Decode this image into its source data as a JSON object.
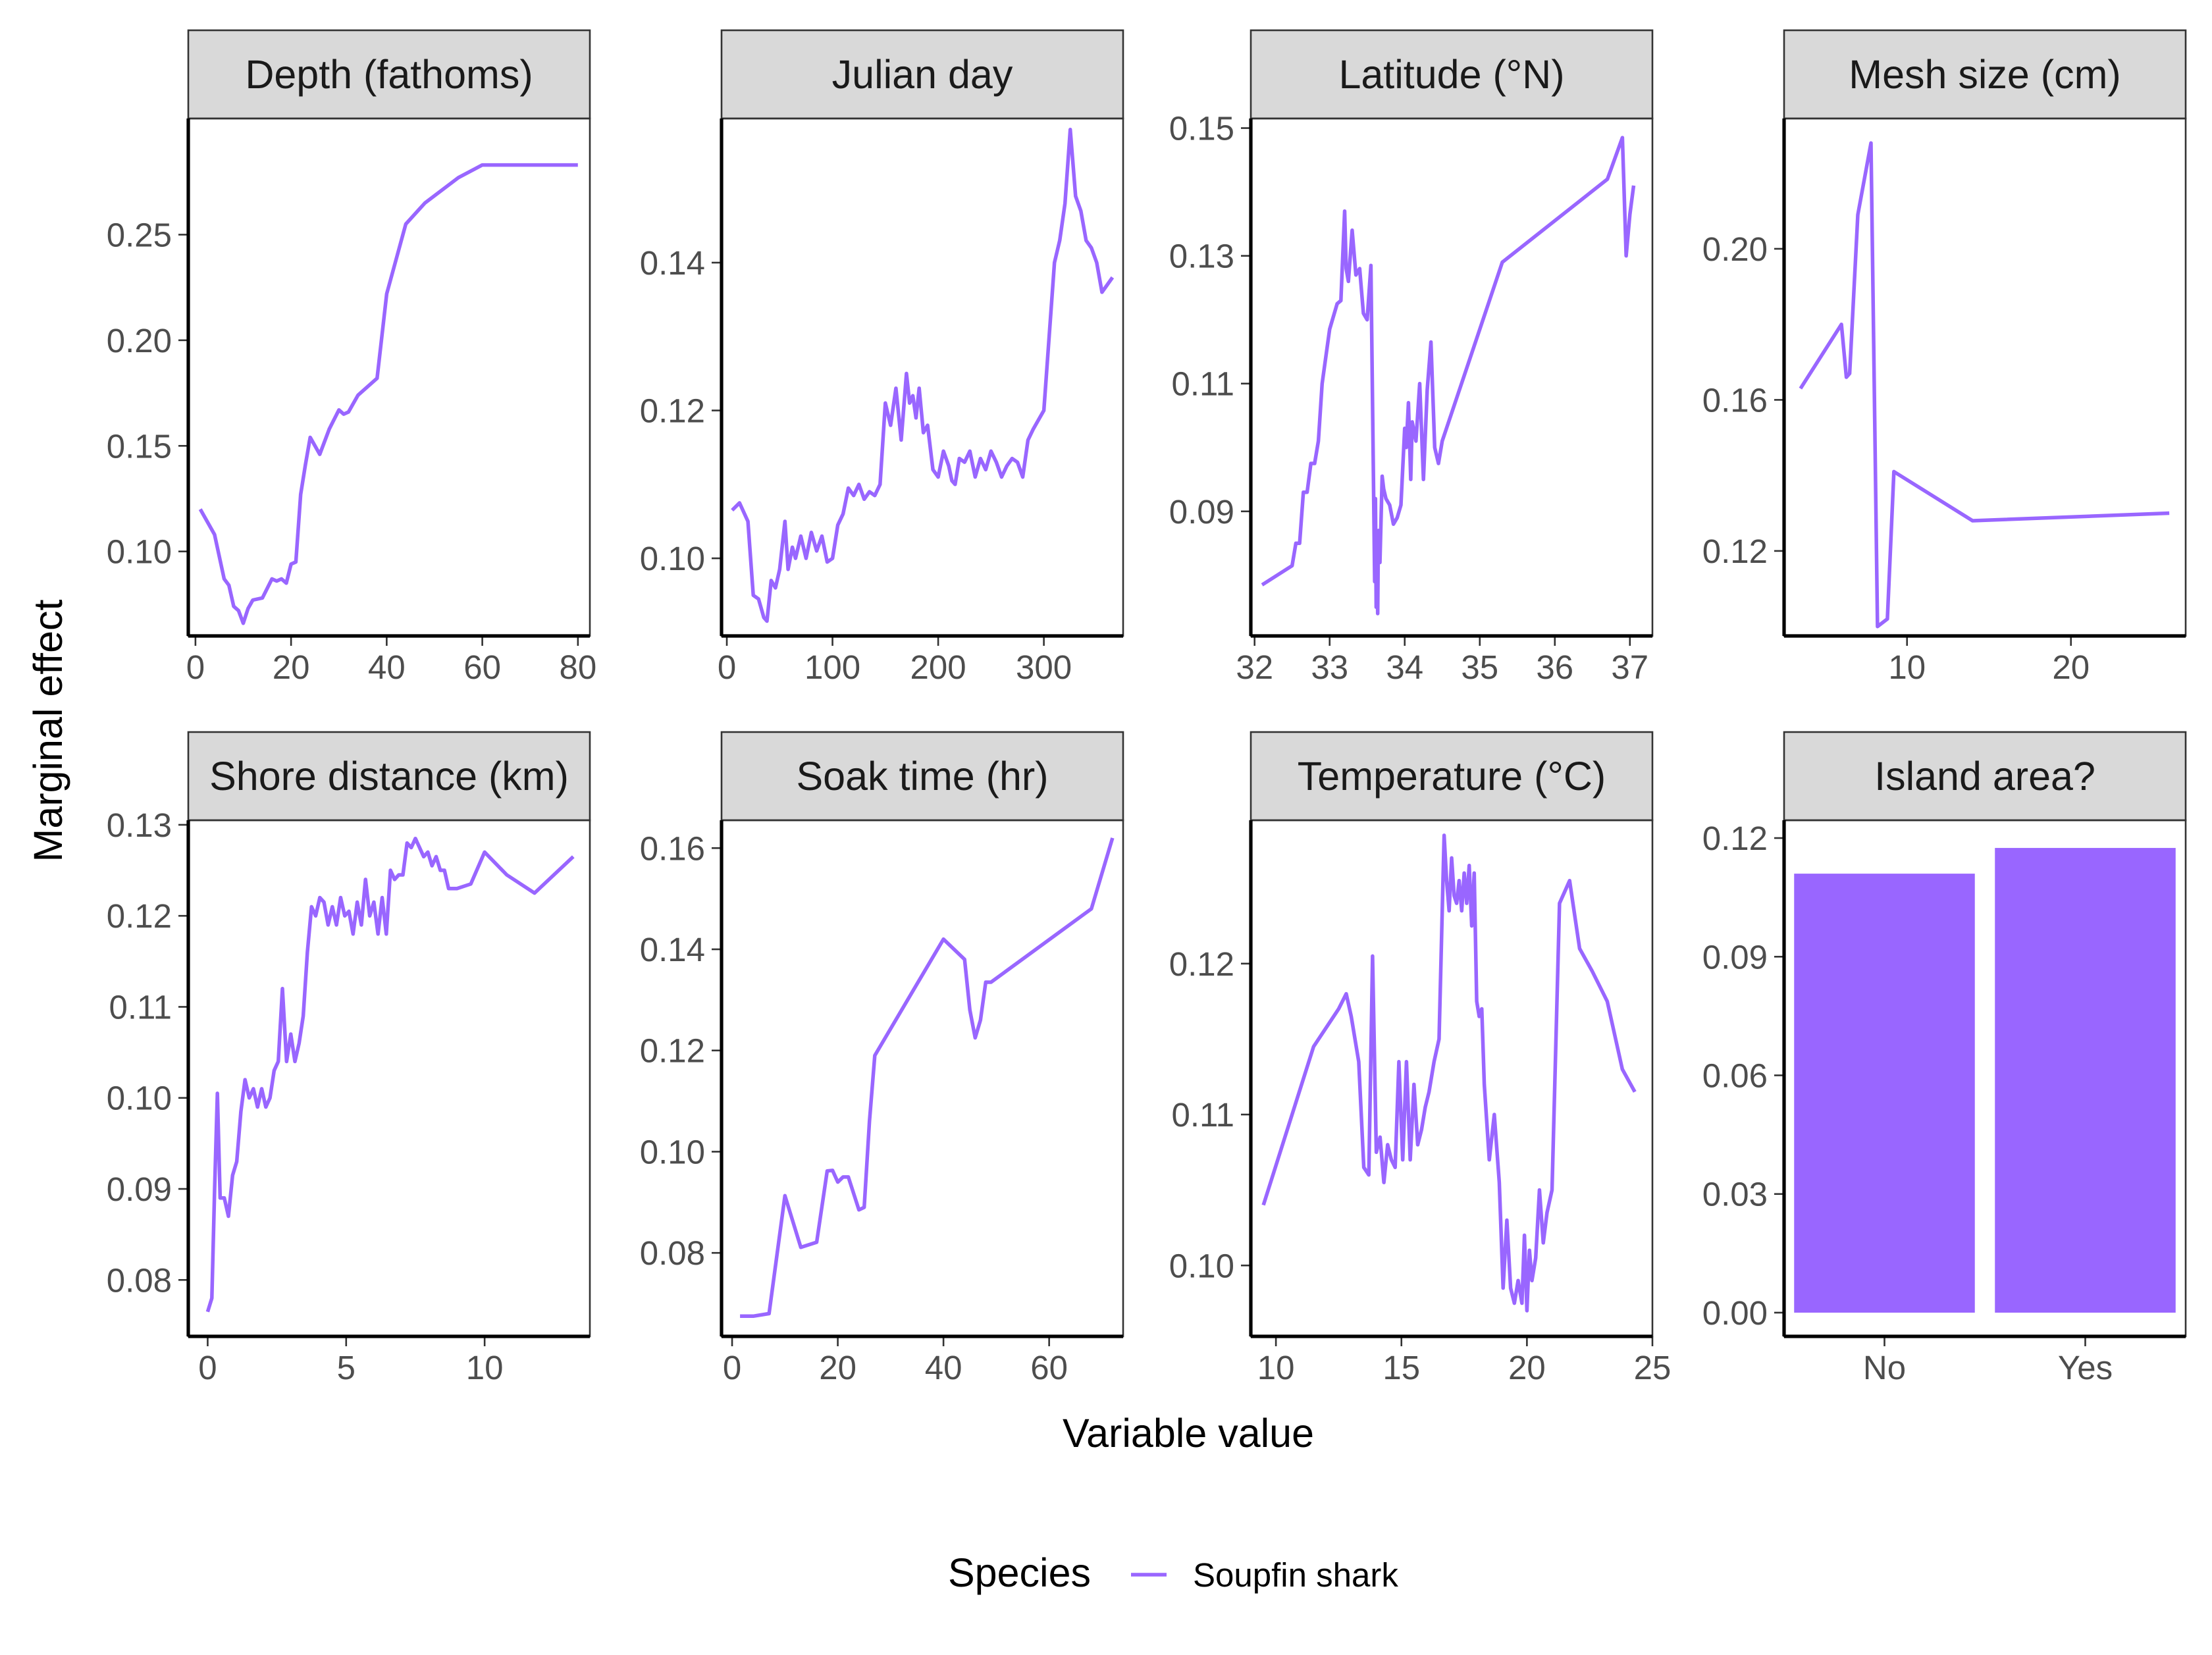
{
  "figure": {
    "xlabel": "Variable value",
    "ylabel": "Marginal effect",
    "legend": {
      "title": "Species",
      "label": "Soupfin shark",
      "position": "bottom",
      "color": "#9966ff"
    }
  },
  "colors": {
    "series": "#9966ff",
    "strip": "#d9d9d9",
    "panel_border": "#333333",
    "tick_label": "#4d4d4d"
  },
  "chart_data": [
    {
      "type": "line",
      "title": "Depth (fathoms)",
      "xlim": [
        -1.5,
        82.5
      ],
      "ylim": [
        0.06,
        0.305
      ],
      "xticks": [
        0,
        20,
        40,
        60,
        80
      ],
      "xtick_labels": [
        "0",
        "20",
        "40",
        "60",
        "80"
      ],
      "yticks": [
        0.1,
        0.15,
        0.2,
        0.25
      ],
      "ytick_labels": [
        "0.10",
        "0.15",
        "0.20",
        "0.25"
      ],
      "series": [
        {
          "name": "Soupfin shark",
          "x": [
            1,
            4,
            6,
            7,
            8,
            9,
            10,
            11,
            12,
            14,
            16,
            17,
            18,
            19,
            20,
            21,
            22,
            23,
            24,
            26,
            28,
            30,
            31,
            32,
            34,
            36,
            38,
            40,
            44,
            48,
            55,
            60,
            80
          ],
          "y": [
            0.12,
            0.108,
            0.087,
            0.084,
            0.074,
            0.072,
            0.066,
            0.073,
            0.077,
            0.078,
            0.087,
            0.086,
            0.087,
            0.085,
            0.094,
            0.095,
            0.127,
            0.141,
            0.154,
            0.146,
            0.158,
            0.167,
            0.165,
            0.166,
            0.174,
            0.178,
            0.182,
            0.222,
            0.255,
            0.265,
            0.277,
            0.283,
            0.283
          ]
        }
      ]
    },
    {
      "type": "line",
      "title": "Julian day",
      "xlim": [
        -5,
        375
      ],
      "ylim": [
        0.0895,
        0.1595
      ],
      "xticks": [
        0,
        100,
        200,
        300
      ],
      "xtick_labels": [
        "0",
        "100",
        "200",
        "300"
      ],
      "yticks": [
        0.1,
        0.12,
        0.14
      ],
      "ytick_labels": [
        "0.10",
        "0.12",
        "0.14"
      ],
      "series": [
        {
          "name": "Soupfin shark",
          "x": [
            5,
            12,
            20,
            25,
            30,
            35,
            38,
            42,
            46,
            50,
            55,
            58,
            62,
            65,
            70,
            75,
            80,
            85,
            90,
            95,
            100,
            105,
            110,
            115,
            120,
            125,
            130,
            135,
            140,
            145,
            150,
            155,
            160,
            165,
            170,
            173,
            176,
            179,
            182,
            186,
            190,
            195,
            200,
            205,
            210,
            213,
            216,
            220,
            225,
            230,
            235,
            240,
            245,
            250,
            255,
            260,
            265,
            270,
            275,
            280,
            285,
            290,
            300,
            310,
            315,
            320,
            325,
            330,
            335,
            340,
            345,
            350,
            355,
            360,
            365
          ],
          "y": [
            0.1065,
            0.1075,
            0.105,
            0.095,
            0.0945,
            0.092,
            0.0915,
            0.097,
            0.096,
            0.0985,
            0.105,
            0.0985,
            0.1015,
            0.1,
            0.103,
            0.1,
            0.1035,
            0.101,
            0.103,
            0.0995,
            0.1,
            0.1045,
            0.106,
            0.1095,
            0.1085,
            0.11,
            0.108,
            0.109,
            0.1085,
            0.11,
            0.121,
            0.118,
            0.123,
            0.116,
            0.125,
            0.121,
            0.122,
            0.119,
            0.123,
            0.117,
            0.118,
            0.112,
            0.111,
            0.1145,
            0.1125,
            0.1105,
            0.11,
            0.1135,
            0.113,
            0.1145,
            0.111,
            0.1135,
            0.112,
            0.1145,
            0.113,
            0.111,
            0.1125,
            0.1135,
            0.113,
            0.111,
            0.116,
            0.1175,
            0.12,
            0.14,
            0.143,
            0.148,
            0.158,
            0.149,
            0.147,
            0.143,
            0.142,
            0.14,
            0.136,
            0.137,
            0.138
          ]
        }
      ]
    },
    {
      "type": "line",
      "title": "Latitude (°N)",
      "xlim": [
        31.95,
        37.3
      ],
      "ylim": [
        0.0705,
        0.1515
      ],
      "xticks": [
        32,
        33,
        34,
        35,
        36,
        37
      ],
      "xtick_labels": [
        "32",
        "33",
        "34",
        "35",
        "36",
        "37"
      ],
      "yticks": [
        0.09,
        0.11,
        0.13,
        0.15
      ],
      "ytick_labels": [
        "0.09",
        "0.11",
        "0.13",
        "0.15"
      ],
      "series": [
        {
          "name": "Soupfin shark",
          "x": [
            32.1,
            32.5,
            32.55,
            32.6,
            32.65,
            32.7,
            32.75,
            32.8,
            32.85,
            32.9,
            33.0,
            33.1,
            33.15,
            33.2,
            33.22,
            33.25,
            33.3,
            33.35,
            33.4,
            33.45,
            33.5,
            33.55,
            33.6,
            33.61,
            33.62,
            33.63,
            33.64,
            33.65,
            33.67,
            33.7,
            33.72,
            33.75,
            33.8,
            33.85,
            33.9,
            33.95,
            34.0,
            34.02,
            34.05,
            34.08,
            34.1,
            34.15,
            34.2,
            34.25,
            34.3,
            34.35,
            34.4,
            34.45,
            34.5,
            35.3,
            36.7,
            36.9,
            36.95,
            37.0,
            37.05
          ],
          "y": [
            0.0785,
            0.0815,
            0.085,
            0.085,
            0.093,
            0.093,
            0.0975,
            0.0975,
            0.101,
            0.11,
            0.1185,
            0.1225,
            0.123,
            0.137,
            0.128,
            0.126,
            0.134,
            0.127,
            0.128,
            0.121,
            0.12,
            0.1285,
            0.079,
            0.092,
            0.075,
            0.084,
            0.074,
            0.087,
            0.082,
            0.0955,
            0.0935,
            0.092,
            0.091,
            0.088,
            0.089,
            0.091,
            0.103,
            0.1,
            0.107,
            0.095,
            0.104,
            0.101,
            0.11,
            0.095,
            0.109,
            0.1165,
            0.1,
            0.0975,
            0.101,
            0.129,
            0.142,
            0.1485,
            0.13,
            0.1365,
            0.141
          ]
        }
      ]
    },
    {
      "type": "line",
      "title": "Mesh size (cm)",
      "xlim": [
        2.5,
        27
      ],
      "ylim": [
        0.0975,
        0.2345
      ],
      "xticks": [
        10,
        20
      ],
      "xtick_labels": [
        "10",
        "20"
      ],
      "yticks": [
        0.12,
        0.16,
        0.2
      ],
      "ytick_labels": [
        "0.12",
        "0.16",
        "0.20"
      ],
      "series": [
        {
          "name": "Soupfin shark",
          "x": [
            3.5,
            6.0,
            6.3,
            6.5,
            7.0,
            7.8,
            8.2,
            8.8,
            9.2,
            14.0,
            26.0
          ],
          "y": [
            0.163,
            0.18,
            0.166,
            0.167,
            0.209,
            0.228,
            0.1,
            0.102,
            0.141,
            0.128,
            0.13
          ]
        }
      ]
    },
    {
      "type": "line",
      "title": "Shore distance (km)",
      "xlim": [
        -0.7,
        13.8
      ],
      "ylim": [
        0.0738,
        0.1305
      ],
      "xticks": [
        0,
        5,
        10
      ],
      "xtick_labels": [
        "0",
        "5",
        "10"
      ],
      "yticks": [
        0.08,
        0.09,
        0.1,
        0.11,
        0.12,
        0.13
      ],
      "ytick_labels": [
        "0.08",
        "0.09",
        "0.10",
        "0.11",
        "0.12",
        "0.13"
      ],
      "series": [
        {
          "name": "Soupfin shark",
          "x": [
            0.0,
            0.15,
            0.25,
            0.35,
            0.45,
            0.6,
            0.75,
            0.9,
            1.05,
            1.2,
            1.35,
            1.5,
            1.65,
            1.8,
            1.95,
            2.1,
            2.25,
            2.4,
            2.55,
            2.7,
            2.85,
            3.0,
            3.15,
            3.3,
            3.45,
            3.6,
            3.75,
            3.9,
            4.05,
            4.2,
            4.35,
            4.5,
            4.65,
            4.8,
            4.95,
            5.1,
            5.25,
            5.4,
            5.55,
            5.7,
            5.85,
            6.0,
            6.15,
            6.3,
            6.45,
            6.6,
            6.75,
            6.9,
            7.05,
            7.2,
            7.35,
            7.5,
            7.65,
            7.8,
            7.95,
            8.1,
            8.25,
            8.4,
            8.55,
            8.7,
            9.0,
            9.5,
            10.0,
            10.8,
            11.8,
            13.2
          ],
          "y": [
            0.0765,
            0.078,
            0.09,
            0.1005,
            0.089,
            0.089,
            0.087,
            0.0915,
            0.093,
            0.0985,
            0.102,
            0.1,
            0.101,
            0.099,
            0.101,
            0.099,
            0.1,
            0.103,
            0.104,
            0.112,
            0.104,
            0.107,
            0.104,
            0.106,
            0.109,
            0.116,
            0.121,
            0.12,
            0.122,
            0.1215,
            0.119,
            0.121,
            0.119,
            0.122,
            0.12,
            0.1205,
            0.118,
            0.1215,
            0.119,
            0.124,
            0.12,
            0.1215,
            0.118,
            0.122,
            0.118,
            0.125,
            0.124,
            0.1245,
            0.1245,
            0.128,
            0.1275,
            0.1285,
            0.1275,
            0.1265,
            0.127,
            0.1255,
            0.1265,
            0.125,
            0.125,
            0.123,
            0.123,
            0.1235,
            0.127,
            0.1245,
            0.1225,
            0.1265
          ]
        }
      ]
    },
    {
      "type": "line",
      "title": "Soak time (hr)",
      "xlim": [
        -2,
        74
      ],
      "ylim": [
        0.0635,
        0.1655
      ],
      "xticks": [
        0,
        20,
        40,
        60
      ],
      "xtick_labels": [
        "0",
        "20",
        "40",
        "60"
      ],
      "yticks": [
        0.08,
        0.1,
        0.12,
        0.14,
        0.16
      ],
      "ytick_labels": [
        "0.08",
        "0.10",
        "0.12",
        "0.14",
        "0.16"
      ],
      "series": [
        {
          "name": "Soupfin shark",
          "x": [
            1.5,
            4,
            7,
            10,
            13,
            16,
            18,
            19,
            20,
            21,
            22,
            24,
            25,
            26,
            27,
            40,
            44,
            45,
            46,
            47,
            48,
            49,
            68,
            72
          ],
          "y": [
            0.0675,
            0.0675,
            0.068,
            0.0913,
            0.0811,
            0.0821,
            0.0962,
            0.0963,
            0.094,
            0.095,
            0.095,
            0.0885,
            0.089,
            0.106,
            0.119,
            0.142,
            0.138,
            0.128,
            0.1225,
            0.126,
            0.1335,
            0.1335,
            0.148,
            0.162
          ]
        }
      ]
    },
    {
      "type": "line",
      "title": "Temperature (°C)",
      "xlim": [
        9.0,
        25.0
      ],
      "ylim": [
        0.0953,
        0.1295
      ],
      "xticks": [
        10,
        15,
        20,
        25
      ],
      "xtick_labels": [
        "10",
        "15",
        "20",
        "25"
      ],
      "yticks": [
        0.1,
        0.11,
        0.12
      ],
      "ytick_labels": [
        "0.10",
        "0.11",
        "0.12"
      ],
      "series": [
        {
          "name": "Soupfin shark",
          "x": [
            9.5,
            11.5,
            12.5,
            12.8,
            13.0,
            13.3,
            13.5,
            13.7,
            13.85,
            14.0,
            14.15,
            14.3,
            14.45,
            14.6,
            14.75,
            14.9,
            15.05,
            15.2,
            15.35,
            15.5,
            15.65,
            15.8,
            15.95,
            16.1,
            16.3,
            16.5,
            16.7,
            16.8,
            16.9,
            17.0,
            17.1,
            17.2,
            17.3,
            17.4,
            17.5,
            17.6,
            17.7,
            17.8,
            17.9,
            18.0,
            18.1,
            18.2,
            18.3,
            18.5,
            18.7,
            18.9,
            19.05,
            19.2,
            19.35,
            19.5,
            19.65,
            19.8,
            19.9,
            20.0,
            20.1,
            20.2,
            20.35,
            20.5,
            20.65,
            20.8,
            21.0,
            21.3,
            21.7,
            22.1,
            22.6,
            23.2,
            23.8,
            24.3
          ],
          "y": [
            0.104,
            0.1145,
            0.117,
            0.118,
            0.1165,
            0.1135,
            0.1065,
            0.106,
            0.1205,
            0.1075,
            0.1085,
            0.1055,
            0.108,
            0.107,
            0.1065,
            0.1135,
            0.107,
            0.1135,
            0.107,
            0.112,
            0.108,
            0.109,
            0.1105,
            0.1115,
            0.1135,
            0.115,
            0.1285,
            0.1255,
            0.1235,
            0.127,
            0.1245,
            0.124,
            0.1255,
            0.1235,
            0.126,
            0.124,
            0.1265,
            0.1225,
            0.126,
            0.1175,
            0.1165,
            0.117,
            0.112,
            0.107,
            0.11,
            0.1055,
            0.0985,
            0.103,
            0.0985,
            0.0975,
            0.099,
            0.0975,
            0.102,
            0.097,
            0.101,
            0.099,
            0.1005,
            0.105,
            0.1015,
            0.1035,
            0.105,
            0.124,
            0.1255,
            0.121,
            0.1195,
            0.1175,
            0.113,
            0.1115
          ]
        }
      ]
    },
    {
      "type": "bar",
      "title": "Island area?",
      "categories": [
        "No",
        "Yes"
      ],
      "values": [
        0.111,
        0.1175
      ],
      "ylim": [
        -0.006,
        0.1245
      ],
      "yticks": [
        0.0,
        0.03,
        0.06,
        0.09,
        0.12
      ],
      "ytick_labels": [
        "0.00",
        "0.03",
        "0.06",
        "0.09",
        "0.12"
      ]
    }
  ]
}
